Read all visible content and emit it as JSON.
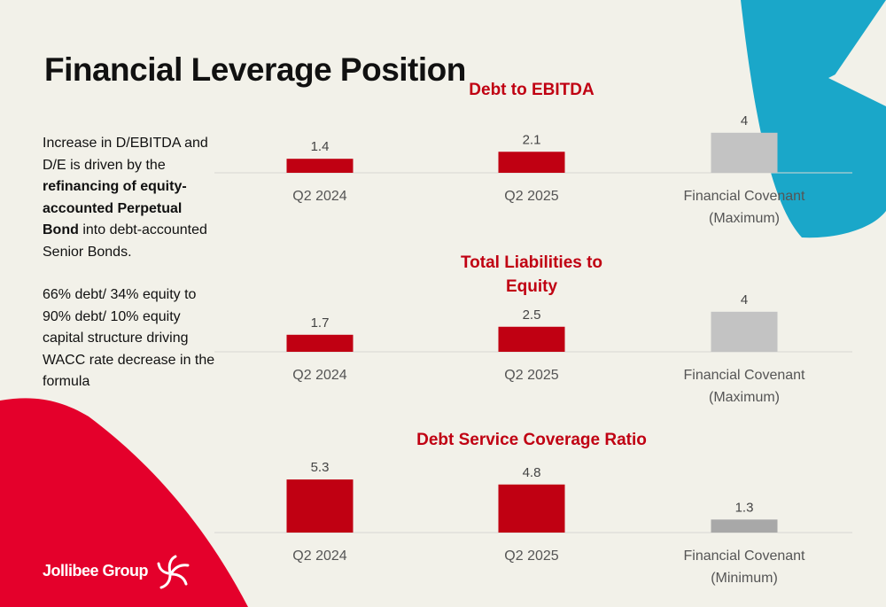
{
  "title": "Financial Leverage Position",
  "narrative": {
    "p1_part1": "Increase in D/EBITDA and D/E is driven by the ",
    "p1_bold1": "refinancing of equity-accounted Perpetual Bond",
    "p1_part2": " into debt-accounted Senior Bonds.",
    "p2": "66% debt/ 34% equity to 90% debt/ 10% equity capital structure driving WACC rate decrease in the formula"
  },
  "logo": {
    "text": "Jollibee Group"
  },
  "colors": {
    "company_bar": "#c00012",
    "covenant_bar": "#c3c3c3",
    "covenant_bar_min": "#a8a8a8",
    "chart_title": "#c00012",
    "accent_red": "#e4002b",
    "accent_teal": "#1aa7c9"
  },
  "chart_data": [
    {
      "type": "bar",
      "title": "Debt to EBITDA",
      "categories": [
        "Q2 2024",
        "Q2 2025",
        "Financial Covenant\n(Maximum)"
      ],
      "values": [
        1.4,
        2.1,
        4
      ],
      "value_labels": [
        "1.4",
        "2.1",
        "4"
      ],
      "bar_colors": [
        "#c00012",
        "#c00012",
        "#c3c3c3"
      ],
      "xlabel": "",
      "ylabel": "",
      "grid": false,
      "legend": "none"
    },
    {
      "type": "bar",
      "title": "Total Liabilities to Equity",
      "categories": [
        "Q2 2024",
        "Q2 2025",
        "Financial Covenant\n(Maximum)"
      ],
      "values": [
        1.7,
        2.5,
        4
      ],
      "value_labels": [
        "1.7",
        "2.5",
        "4"
      ],
      "bar_colors": [
        "#c00012",
        "#c00012",
        "#c3c3c3"
      ],
      "xlabel": "",
      "ylabel": "",
      "grid": false,
      "legend": "none"
    },
    {
      "type": "bar",
      "title": "Debt Service Coverage Ratio",
      "categories": [
        "Q2 2024",
        "Q2 2025",
        "Financial Covenant\n(Minimum)"
      ],
      "values": [
        5.3,
        4.8,
        1.3
      ],
      "value_labels": [
        "5.3",
        "4.8",
        "1.3"
      ],
      "bar_colors": [
        "#c00012",
        "#c00012",
        "#a8a8a8"
      ],
      "xlabel": "",
      "ylabel": "",
      "grid": false,
      "legend": "none"
    }
  ]
}
